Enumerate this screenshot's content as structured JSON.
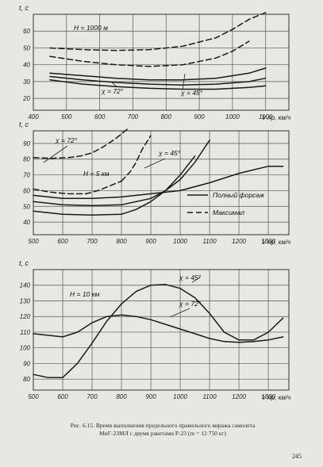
{
  "chart_data": [
    {
      "type": "line",
      "title": "",
      "ylabel": "t, c",
      "xlabel": "V пр, км/ч",
      "x_ticks": [
        400,
        500,
        600,
        700,
        800,
        900,
        1000,
        1100
      ],
      "y_ticks": [
        20,
        30,
        40,
        50,
        60
      ],
      "xlim": [
        400,
        1170
      ],
      "ylim": [
        13,
        70
      ],
      "grid": true,
      "annotations": [
        "H = 1000 м",
        "χ = 72°",
        "χ = 45°"
      ],
      "series": [
        {
          "style": "dashed",
          "x": [
            450,
            550,
            650,
            750,
            850,
            950,
            1000,
            1050,
            1100
          ],
          "y": [
            50,
            49,
            48.5,
            49,
            51,
            56,
            61,
            67,
            71
          ]
        },
        {
          "style": "dashed",
          "x": [
            450,
            550,
            650,
            750,
            850,
            950,
            1000,
            1050
          ],
          "y": [
            45,
            42,
            40,
            39,
            40,
            44,
            48,
            54
          ]
        },
        {
          "style": "solid",
          "x": [
            450,
            550,
            650,
            750,
            850,
            950,
            1050,
            1100
          ],
          "y": [
            35,
            33.5,
            32,
            31,
            31,
            32,
            35,
            38
          ]
        },
        {
          "style": "solid",
          "x": [
            450,
            550,
            650,
            750,
            850,
            950,
            1050,
            1100
          ],
          "y": [
            33,
            31,
            29.5,
            28.5,
            28,
            28.5,
            30,
            32
          ]
        },
        {
          "style": "solid",
          "x": [
            450,
            550,
            650,
            750,
            850,
            950,
            1050,
            1100
          ],
          "y": [
            31,
            28.5,
            27,
            26,
            25.5,
            25.5,
            26.5,
            27.5
          ]
        }
      ]
    },
    {
      "type": "line",
      "title": "",
      "ylabel": "t, c",
      "xlabel": "V пр, км/ч",
      "x_ticks": [
        500,
        600,
        700,
        800,
        900,
        1000,
        1100,
        1200,
        1300
      ],
      "y_ticks": [
        40,
        50,
        60,
        70,
        80,
        90
      ],
      "xlim": [
        500,
        1370
      ],
      "ylim": [
        32,
        98
      ],
      "grid": true,
      "annotations": [
        "χ = 72°",
        "H = 5 км",
        "χ = 45°"
      ],
      "legend": [
        "Полный форсаж",
        "Максимал"
      ],
      "series": [
        {
          "style": "dashed",
          "x": [
            500,
            560,
            620,
            660,
            700,
            740,
            780,
            820
          ],
          "y": [
            81,
            80.5,
            81,
            82,
            84,
            88,
            93,
            99
          ]
        },
        {
          "style": "dashed",
          "x": [
            500,
            560,
            620,
            680,
            720,
            760,
            800
          ],
          "y": [
            61,
            59,
            58,
            58,
            60,
            63,
            66
          ]
        },
        {
          "style": "dashed",
          "x": [
            800,
            830,
            850,
            870,
            900
          ],
          "y": [
            66,
            72,
            78,
            86,
            95
          ]
        },
        {
          "style": "solid",
          "x": [
            500,
            600,
            700,
            800,
            900,
            1000,
            1100,
            1200,
            1300,
            1350
          ],
          "y": [
            57,
            55,
            55,
            56,
            58,
            60,
            65,
            71,
            75.5,
            75.5
          ]
        },
        {
          "style": "solid",
          "x": [
            500,
            600,
            700,
            800,
            900,
            950,
            1000,
            1050,
            1100
          ],
          "y": [
            53,
            51,
            50.5,
            51,
            55,
            60,
            67,
            78,
            92
          ]
        },
        {
          "style": "solid",
          "x": [
            500,
            600,
            700,
            800,
            850,
            900,
            950,
            1000,
            1050
          ],
          "y": [
            47,
            45,
            44.5,
            45,
            48,
            53,
            60,
            70,
            82
          ]
        }
      ]
    },
    {
      "type": "line",
      "title": "",
      "ylabel": "t, c",
      "xlabel": "V пр, км/ч",
      "x_ticks": [
        500,
        600,
        700,
        800,
        900,
        1000,
        1100,
        1200,
        1300
      ],
      "y_ticks": [
        80,
        90,
        100,
        110,
        120,
        130,
        140
      ],
      "xlim": [
        500,
        1370
      ],
      "ylim": [
        73,
        150
      ],
      "grid": true,
      "annotations": [
        "H = 10 км",
        "χ = 45°",
        "χ = 72°"
      ],
      "series": [
        {
          "name": "χ = 45°",
          "style": "solid",
          "x": [
            500,
            550,
            600,
            650,
            700,
            750,
            800,
            850,
            900,
            950,
            1000,
            1050,
            1100,
            1150,
            1200,
            1250,
            1300,
            1350
          ],
          "y": [
            83,
            81,
            81,
            90,
            103,
            117,
            128,
            136,
            140,
            140.5,
            138,
            132,
            122,
            110,
            105,
            105,
            110,
            119
          ]
        },
        {
          "name": "χ = 72°",
          "style": "solid",
          "x": [
            500,
            550,
            600,
            650,
            700,
            750,
            800,
            850,
            900,
            950,
            1000,
            1050,
            1100,
            1150,
            1200,
            1250,
            1300,
            1350
          ],
          "y": [
            109,
            108,
            107,
            110,
            116,
            120,
            121,
            120,
            118,
            115,
            112,
            109,
            106,
            104,
            103.5,
            104,
            105,
            107
          ]
        }
      ]
    }
  ],
  "caption_line1": "Рис. 6.15. Время выполнения предельного правильного виража самолета",
  "caption_line2": "МиГ-23МЛ с двумя ракетами Р-23 (m = 12 750 кг)",
  "page_number": "245"
}
